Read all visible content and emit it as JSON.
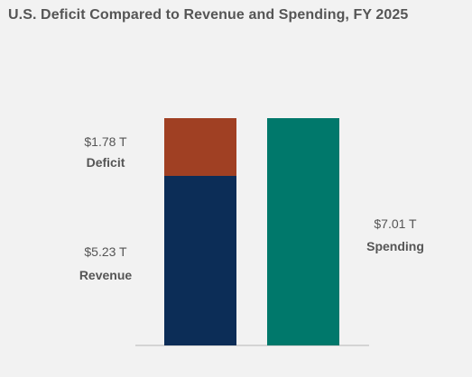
{
  "chart_data": {
    "type": "bar",
    "stacked": true,
    "title": "U.S. Deficit Compared to Revenue and Spending, FY 2025",
    "unit": "T",
    "categories": [
      "",
      ""
    ],
    "bars": [
      {
        "segments": [
          {
            "name": "Revenue",
            "value": 5.23,
            "value_label": "$5.23 T",
            "color": "#0c2d57"
          },
          {
            "name": "Deficit",
            "value": 1.78,
            "value_label": "$1.78 T",
            "color": "#a04023"
          }
        ]
      },
      {
        "segments": [
          {
            "name": "Spending",
            "value": 7.01,
            "value_label": "$7.01 T",
            "color": "#00786b"
          }
        ]
      }
    ],
    "ylim": [
      0,
      7.01
    ],
    "grid": false,
    "legend": "none"
  }
}
